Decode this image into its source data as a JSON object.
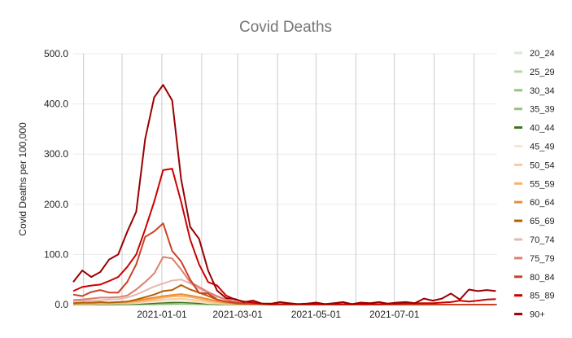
{
  "chart_data": {
    "type": "line",
    "title": "Covid Deaths",
    "xlabel": "",
    "ylabel": "Covid Deaths per 100,000",
    "ylim": [
      0,
      500
    ],
    "yticks": [
      "0.0",
      "100.0",
      "200.0",
      "300.0",
      "400.0",
      "500.0"
    ],
    "ytick_values": [
      0,
      100,
      200,
      300,
      400,
      500
    ],
    "xrange": [
      "2020-10-24",
      "2021-09-19"
    ],
    "xticks": [
      "2021-01-01",
      "2021-03-01",
      "2021-05-01",
      "2021-07-01"
    ],
    "grid": "vertical",
    "legend": "right",
    "x": [
      "2020-10-24",
      "2020-10-31",
      "2020-11-07",
      "2020-11-14",
      "2020-11-21",
      "2020-11-28",
      "2020-12-05",
      "2020-12-12",
      "2020-12-19",
      "2020-12-26",
      "2021-01-02",
      "2021-01-09",
      "2021-01-16",
      "2021-01-23",
      "2021-01-30",
      "2021-02-06",
      "2021-02-13",
      "2021-02-20",
      "2021-02-27",
      "2021-03-06",
      "2021-03-13",
      "2021-03-20",
      "2021-03-27",
      "2021-04-03",
      "2021-04-10",
      "2021-04-17",
      "2021-04-24",
      "2021-05-01",
      "2021-05-08",
      "2021-05-15",
      "2021-05-22",
      "2021-05-29",
      "2021-06-05",
      "2021-06-12",
      "2021-06-19",
      "2021-06-26",
      "2021-07-03",
      "2021-07-10",
      "2021-07-17",
      "2021-07-24",
      "2021-07-31",
      "2021-08-07",
      "2021-08-14",
      "2021-08-21",
      "2021-08-28",
      "2021-09-04",
      "2021-09-11",
      "2021-09-18"
    ],
    "series": [
      {
        "name": "20_24",
        "color": "#d9ead3",
        "values": [
          0,
          0,
          0,
          0,
          0,
          0,
          0,
          0,
          0,
          0,
          0.5,
          0.5,
          0.5,
          0.5,
          0.5,
          0,
          0,
          0,
          0,
          0,
          0,
          0,
          0,
          0,
          0,
          0,
          0,
          0,
          0,
          0,
          0,
          0,
          0,
          0,
          0,
          0,
          0,
          0,
          0,
          0,
          0,
          0,
          0,
          0,
          0,
          0,
          0,
          0
        ]
      },
      {
        "name": "25_29",
        "color": "#b6d7a8",
        "values": [
          0,
          0,
          0,
          0,
          0,
          0,
          0,
          0,
          0,
          0,
          0.5,
          1,
          1,
          1,
          0.5,
          0,
          0,
          0,
          0,
          0,
          0,
          0,
          0,
          0,
          0,
          0,
          0,
          0,
          0,
          0,
          0,
          0,
          0,
          0,
          0,
          0,
          0,
          0,
          0,
          0,
          0,
          0,
          0,
          0,
          0,
          0,
          0,
          0
        ]
      },
      {
        "name": "30_34",
        "color": "#93c47d",
        "values": [
          0,
          0,
          0,
          0,
          0,
          0,
          0.5,
          0.5,
          1,
          1,
          1.5,
          1.5,
          2,
          1.5,
          1,
          0.5,
          0,
          0,
          0,
          0,
          0,
          0,
          0,
          0,
          0,
          0,
          0,
          0,
          0,
          0,
          0,
          0,
          0,
          0,
          0,
          0,
          0,
          0,
          0,
          0,
          0,
          0,
          0,
          0,
          0,
          0,
          0,
          0
        ]
      },
      {
        "name": "35_39",
        "color": "#93c47d",
        "values": [
          0,
          0,
          0,
          0.5,
          0.5,
          0.5,
          0.5,
          1,
          1.5,
          2,
          2.5,
          3,
          3,
          2.5,
          2,
          1,
          0.5,
          0,
          0,
          0,
          0,
          0,
          0,
          0,
          0,
          0,
          0,
          0,
          0,
          0,
          0,
          0,
          0,
          0,
          0,
          0,
          0,
          0,
          0,
          0,
          0,
          0,
          0,
          0,
          0,
          0,
          0,
          0
        ]
      },
      {
        "name": "40_44",
        "color": "#38761d",
        "values": [
          0.5,
          0.5,
          0.5,
          0.5,
          0.5,
          1,
          1,
          1.5,
          2,
          3,
          4,
          4.5,
          5,
          4,
          3,
          2,
          1,
          0.5,
          0.5,
          0,
          0,
          0,
          0,
          0,
          0,
          0,
          0,
          0,
          0,
          0,
          0,
          0,
          0,
          0,
          0,
          0,
          0,
          0,
          0,
          0,
          0,
          0,
          0,
          0,
          0,
          0,
          0,
          0
        ]
      },
      {
        "name": "45_49",
        "color": "#fce5cd",
        "values": [
          1,
          1,
          1,
          1.5,
          1.5,
          2,
          2,
          3,
          4,
          5,
          6,
          7,
          7,
          6,
          5,
          3,
          2,
          1,
          1,
          0.5,
          0,
          0,
          0,
          0,
          0,
          0,
          0,
          0,
          0,
          0,
          0,
          0,
          0,
          0,
          0,
          0,
          0,
          0,
          0,
          0,
          0,
          0,
          0,
          0,
          0,
          0,
          0,
          0
        ]
      },
      {
        "name": "50_54",
        "color": "#f9cb9c",
        "values": [
          1,
          1.5,
          1.5,
          2,
          2,
          2.5,
          3,
          4,
          6,
          8,
          10,
          11,
          12,
          10,
          8,
          5,
          3,
          2,
          1,
          1,
          0.5,
          0,
          0,
          0,
          0,
          0,
          0,
          0,
          0,
          0,
          0,
          0,
          0,
          0,
          0,
          0,
          0,
          0,
          0,
          0,
          0,
          0,
          0,
          0,
          0,
          0,
          0,
          0
        ]
      },
      {
        "name": "55_59",
        "color": "#f6b26b",
        "values": [
          1.5,
          2,
          2,
          2.5,
          3,
          3,
          4,
          6,
          8,
          11,
          14,
          16,
          17,
          15,
          12,
          8,
          5,
          3,
          2,
          1,
          1,
          0.5,
          0,
          0,
          0,
          0,
          0,
          0,
          0,
          0,
          0,
          0,
          0,
          0,
          0,
          0,
          0,
          0,
          0,
          0,
          0,
          0,
          0,
          0,
          0,
          0,
          0,
          0
        ]
      },
      {
        "name": "60_64",
        "color": "#e69138",
        "values": [
          2,
          3,
          3,
          4,
          4,
          5,
          6,
          8,
          11,
          14,
          17,
          19,
          21,
          18,
          15,
          11,
          7,
          4,
          2,
          1.5,
          1,
          0.5,
          0,
          0,
          0,
          0,
          0,
          0,
          0,
          0,
          0,
          0,
          0,
          0,
          0,
          0,
          0,
          0,
          0,
          0,
          0,
          0,
          0,
          0,
          0,
          0,
          0,
          0
        ]
      },
      {
        "name": "65_69",
        "color": "#b45f06",
        "values": [
          3,
          4,
          4,
          5,
          4,
          5,
          6,
          10,
          15,
          20,
          27,
          29,
          39,
          30,
          24,
          17,
          10,
          6,
          3,
          2,
          1,
          1,
          0,
          0,
          0,
          0,
          0,
          0,
          0,
          0,
          0,
          0,
          0,
          0,
          0,
          0,
          0,
          0,
          0,
          0,
          0,
          0,
          0,
          0,
          0,
          0,
          0,
          0
        ]
      },
      {
        "name": "70_74",
        "color": "#e6b8af",
        "values": [
          7,
          8,
          8,
          9,
          10,
          11,
          14,
          20,
          28,
          36,
          42,
          48,
          50,
          42,
          32,
          22,
          15,
          10,
          5,
          3,
          2,
          1,
          1,
          0.5,
          0.5,
          0.5,
          0,
          0,
          0,
          0,
          0,
          0,
          0,
          0,
          0,
          0,
          0,
          0,
          0,
          0,
          0,
          0,
          0,
          0,
          0,
          0,
          0,
          0
        ]
      },
      {
        "name": "75_79",
        "color": "#dd7e6b",
        "values": [
          9,
          10,
          12,
          14,
          14,
          15,
          18,
          30,
          45,
          62,
          95,
          92,
          70,
          45,
          35,
          25,
          17,
          10,
          6,
          3,
          2,
          1,
          1,
          0.5,
          0.5,
          0.5,
          0,
          0,
          0,
          0,
          0,
          0,
          0,
          0,
          0,
          0,
          0,
          0,
          0,
          0,
          0,
          0,
          0,
          0,
          0,
          0,
          0,
          0
        ]
      },
      {
        "name": "80_84",
        "color": "#cc4125",
        "values": [
          20,
          17,
          25,
          29,
          24,
          24,
          45,
          80,
          135,
          146,
          162,
          107,
          86,
          50,
          23,
          22,
          10,
          6,
          4,
          2,
          1,
          1,
          0.5,
          0.5,
          0.5,
          0.5,
          0,
          0,
          0,
          0,
          0,
          0,
          0,
          0,
          0,
          0,
          0,
          0,
          0,
          0,
          0,
          0,
          0,
          0,
          0,
          0,
          0,
          0
        ]
      },
      {
        "name": "85_89",
        "color": "#cc0000",
        "values": [
          27,
          35,
          38,
          40,
          47,
          55,
          75,
          100,
          150,
          205,
          268,
          271,
          205,
          130,
          80,
          45,
          38,
          18,
          10,
          6,
          4,
          2,
          1,
          1,
          1,
          1,
          1,
          1,
          1,
          1,
          1,
          1,
          1,
          1,
          1,
          2,
          2,
          3,
          3,
          3,
          3,
          4,
          5,
          8,
          6,
          8,
          10,
          11
        ]
      },
      {
        "name": "90+",
        "color": "#990000",
        "values": [
          45,
          68,
          55,
          65,
          90,
          100,
          145,
          185,
          330,
          413,
          438,
          407,
          250,
          155,
          131,
          68,
          28,
          13,
          11,
          5,
          8,
          2,
          2,
          5,
          3,
          1,
          2,
          4,
          1,
          3,
          5,
          1,
          4,
          3,
          5,
          2,
          4,
          5,
          3,
          12,
          8,
          12,
          22,
          10,
          30,
          27,
          29,
          27
        ]
      }
    ]
  }
}
